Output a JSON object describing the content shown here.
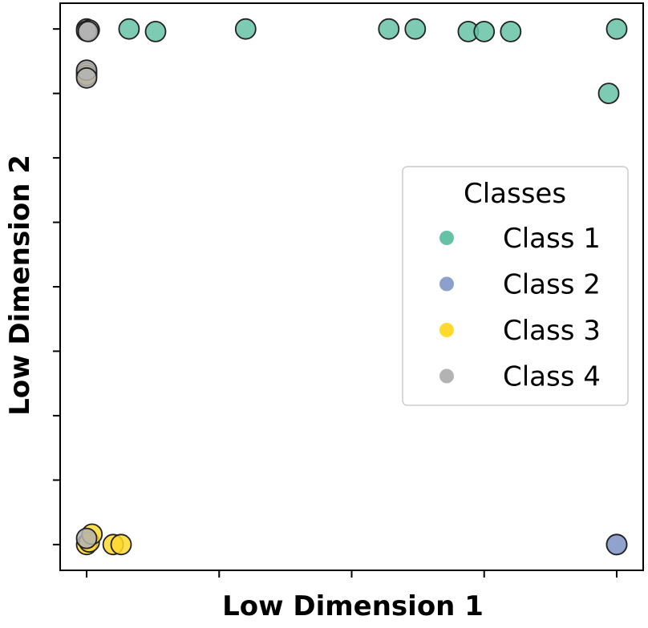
{
  "chart_data": {
    "type": "scatter",
    "xlabel": "Low Dimension 1",
    "ylabel": "Low Dimension 2",
    "xlim": [
      -0.05,
      1.05
    ],
    "ylim": [
      -0.05,
      1.05
    ],
    "xticks": [
      0,
      0.25,
      0.5,
      0.75,
      1.0
    ],
    "yticks": [
      0,
      0.125,
      0.25,
      0.375,
      0.5,
      0.625,
      0.75,
      0.875,
      1.0
    ],
    "tick_labels_shown": false,
    "grid": false,
    "legend": {
      "title": "Classes",
      "placement": "center-right"
    },
    "series": [
      {
        "name": "Class 1",
        "color": "#66c2a5",
        "points": [
          [
            0.08,
            1.0
          ],
          [
            0.13,
            0.995
          ],
          [
            0.3,
            1.0
          ],
          [
            0.57,
            1.0
          ],
          [
            0.62,
            1.0
          ],
          [
            0.72,
            0.995
          ],
          [
            0.75,
            0.995
          ],
          [
            0.8,
            0.995
          ],
          [
            1.0,
            1.0
          ],
          [
            0.985,
            0.875
          ]
        ]
      },
      {
        "name": "Class 2",
        "color": "#8da0cb",
        "points": [
          [
            1.0,
            0.0
          ],
          [
            1.0,
            0.0
          ]
        ]
      },
      {
        "name": "Class 3",
        "color": "#ffd92f",
        "points": [
          [
            0.0,
            0.0
          ],
          [
            0.005,
            0.005
          ],
          [
            0.01,
            0.02
          ],
          [
            0.05,
            0.0
          ],
          [
            0.065,
            0.0
          ],
          [
            0.0,
            0.915
          ],
          [
            0.0,
            0.91
          ]
        ]
      },
      {
        "name": "Class 4",
        "color": "#b3b3b3",
        "points": [
          [
            0.0,
            1.0
          ],
          [
            0.005,
            0.998
          ],
          [
            0.0,
            0.996
          ],
          [
            0.003,
            0.995
          ],
          [
            0.0,
            0.92
          ],
          [
            0.0,
            0.905
          ],
          [
            0.0,
            0.012
          ]
        ]
      }
    ]
  }
}
